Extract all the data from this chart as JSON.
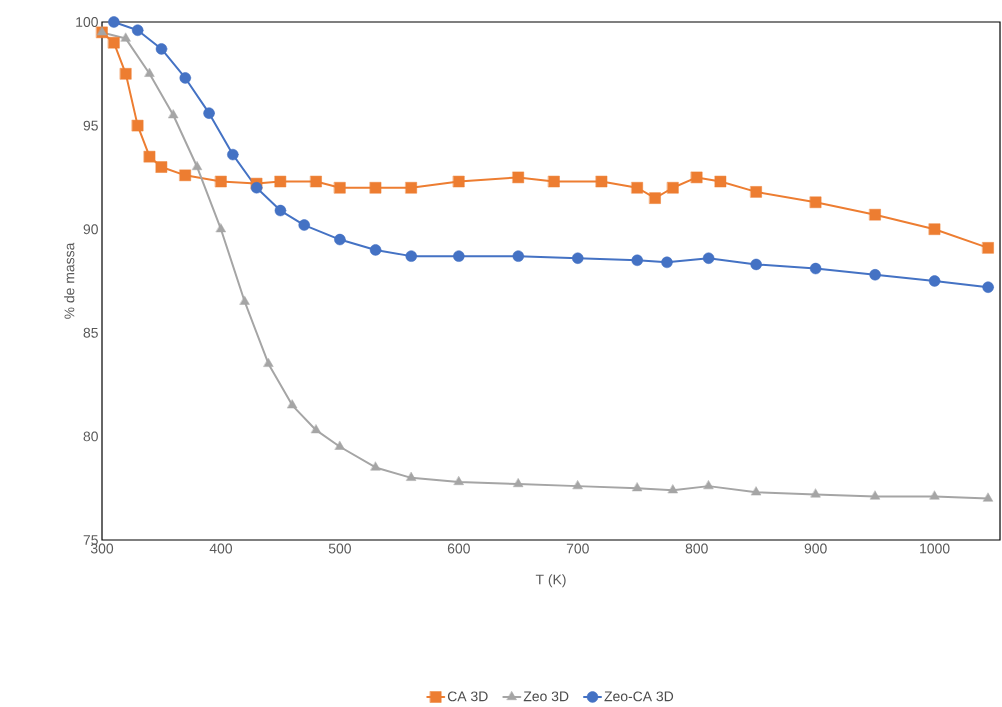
{
  "chart_data": {
    "type": "line",
    "xlabel": "T (K)",
    "ylabel": "% de massa",
    "xlim": [
      300,
      1055
    ],
    "ylim": [
      75,
      100
    ],
    "xticks": [
      300,
      400,
      500,
      600,
      700,
      800,
      900,
      1000
    ],
    "yticks": [
      75,
      80,
      85,
      90,
      95,
      100
    ],
    "legend": "bottom",
    "grid": false,
    "series": [
      {
        "name": "CA 3D",
        "color": "#ed7d31",
        "marker": "square",
        "x": [
          300,
          310,
          320,
          330,
          340,
          350,
          370,
          400,
          430,
          450,
          480,
          500,
          530,
          560,
          600,
          650,
          680,
          720,
          750,
          765,
          780,
          800,
          820,
          850,
          900,
          950,
          1000,
          1045
        ],
        "values": [
          99.5,
          99,
          97.5,
          95,
          93.5,
          93,
          92.6,
          92.3,
          92.2,
          92.3,
          92.3,
          92.0,
          92.0,
          92.0,
          92.3,
          92.5,
          92.3,
          92.3,
          92.0,
          91.5,
          92.0,
          92.5,
          92.3,
          91.8,
          91.3,
          90.7,
          90.0,
          89.1
        ]
      },
      {
        "name": "Zeo 3D",
        "color": "#a5a5a5",
        "marker": "triangle",
        "x": [
          300,
          320,
          340,
          360,
          380,
          400,
          420,
          440,
          460,
          480,
          500,
          530,
          560,
          600,
          650,
          700,
          750,
          780,
          810,
          850,
          900,
          950,
          1000,
          1045
        ],
        "values": [
          99.5,
          99.2,
          97.5,
          95.5,
          93,
          90,
          86.5,
          83.5,
          81.5,
          80.3,
          79.5,
          78.5,
          78.0,
          77.8,
          77.7,
          77.6,
          77.5,
          77.4,
          77.6,
          77.3,
          77.2,
          77.1,
          77.1,
          77.0
        ]
      },
      {
        "name": "Zeo-CA 3D",
        "color": "#4472c4",
        "marker": "circle",
        "x": [
          310,
          330,
          350,
          370,
          390,
          410,
          430,
          450,
          470,
          500,
          530,
          560,
          600,
          650,
          700,
          750,
          775,
          810,
          850,
          900,
          950,
          1000,
          1045
        ],
        "values": [
          100,
          99.6,
          98.7,
          97.3,
          95.6,
          93.6,
          92,
          90.9,
          90.2,
          89.5,
          89.0,
          88.7,
          88.7,
          88.7,
          88.6,
          88.5,
          88.4,
          88.6,
          88.3,
          88.1,
          87.8,
          87.5,
          87.2
        ]
      }
    ]
  }
}
